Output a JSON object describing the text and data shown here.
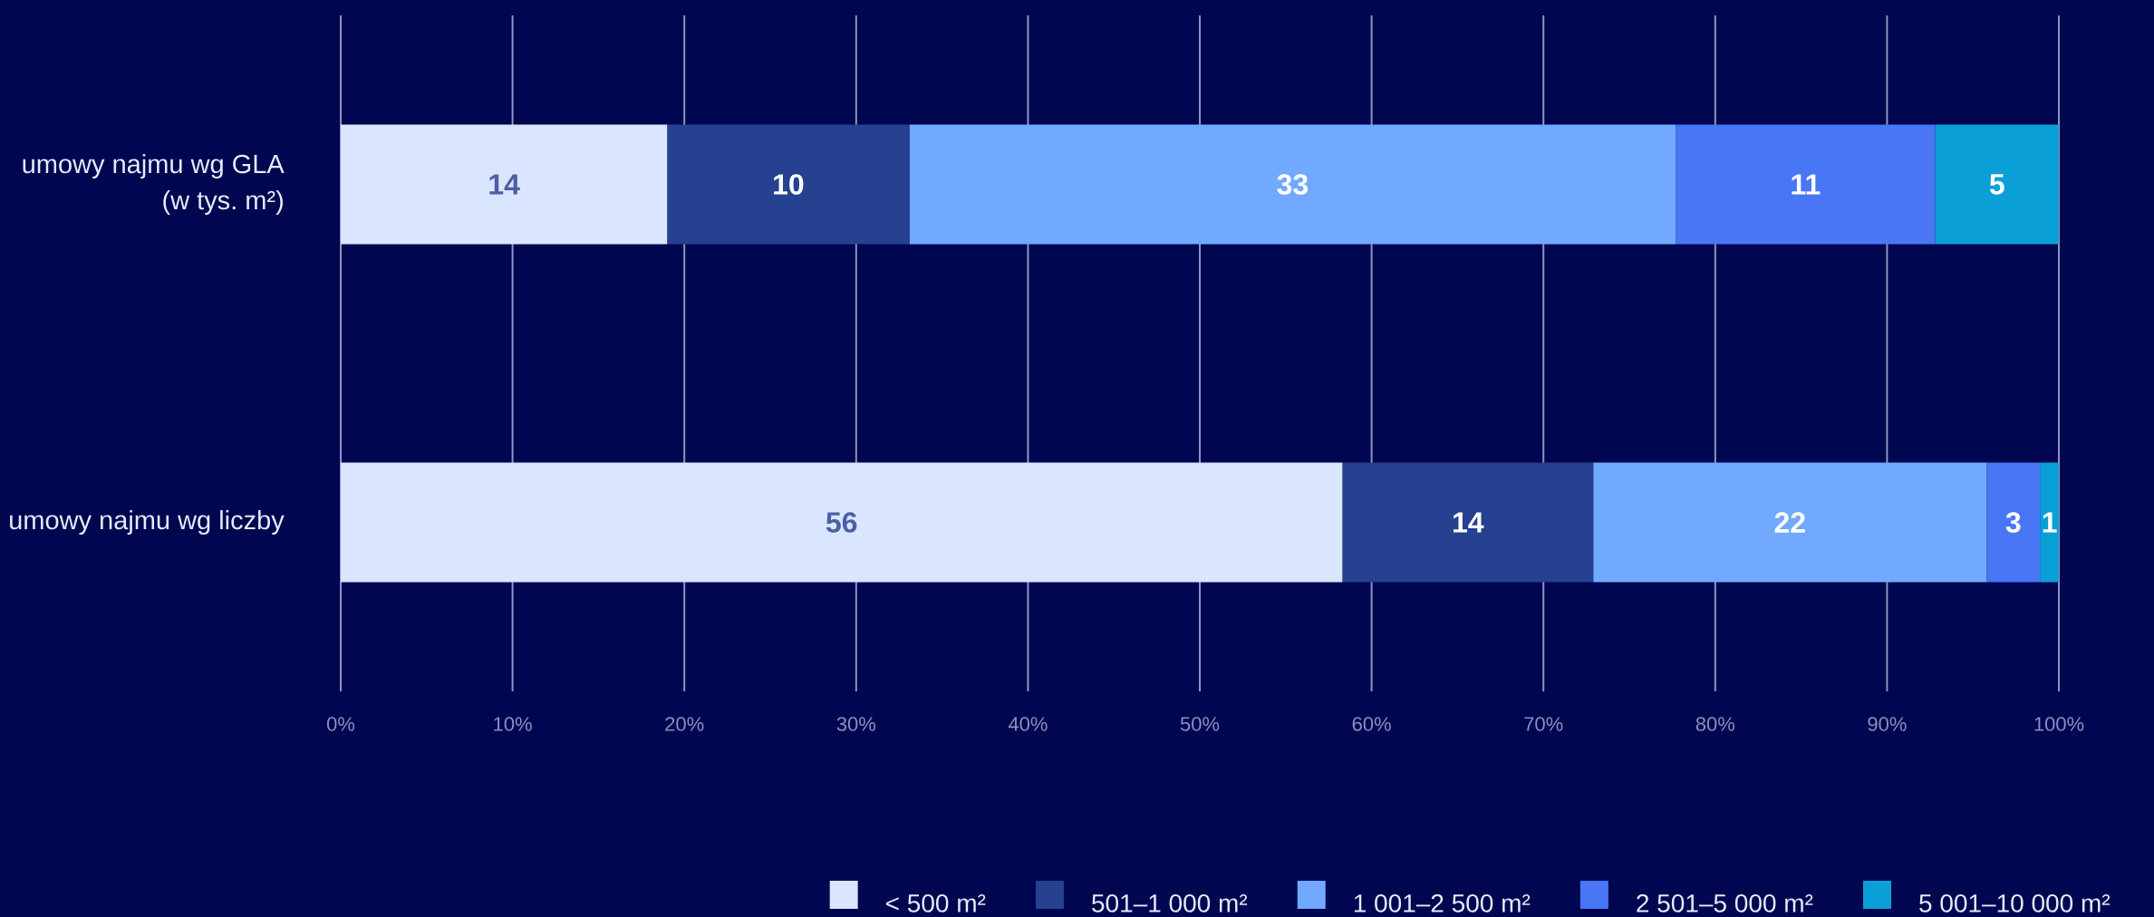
{
  "chart_data": {
    "type": "bar",
    "orientation": "horizontal",
    "stacked": true,
    "categories": [
      "umowy najmu wg GLA (w tys. m²)",
      "umowy najmu wg liczby"
    ],
    "series": [
      {
        "name": "< 500 m²",
        "color": "#dae5ff",
        "values": [
          19.0,
          58.3
        ]
      },
      {
        "name": "501–1 000 m²",
        "color": "#25418f",
        "values": [
          14.1,
          14.6
        ]
      },
      {
        "name": "1 001–2 500 m²",
        "color": "#70a9ff",
        "values": [
          44.6,
          22.9
        ]
      },
      {
        "name": "2 501–5 000 m²",
        "color": "#4876f5",
        "values": [
          15.1,
          3.1
        ]
      },
      {
        "name": "5 001–10 000 m²",
        "color": "#0b9fd8",
        "values": [
          7.2,
          1.1
        ]
      }
    ],
    "annotations": [
      "14",
      "10",
      "33",
      "11",
      "5",
      "56",
      "14",
      "22",
      "3",
      "1"
    ],
    "xlim": [
      0,
      100
    ],
    "xticks": [
      {
        "value": 0,
        "label": "0%"
      },
      {
        "value": 10,
        "label": "10%"
      },
      {
        "value": 20,
        "label": "20%"
      },
      {
        "value": 30,
        "label": "30%"
      },
      {
        "value": 40,
        "label": "40%"
      },
      {
        "value": 50,
        "label": "50%"
      },
      {
        "value": 60,
        "label": "60%"
      },
      {
        "value": 70,
        "label": "70%"
      },
      {
        "value": 80,
        "label": "80%"
      },
      {
        "value": 90,
        "label": "90%"
      },
      {
        "value": 100,
        "label": "100%"
      }
    ],
    "grid": "x",
    "legend": "bottom right"
  }
}
